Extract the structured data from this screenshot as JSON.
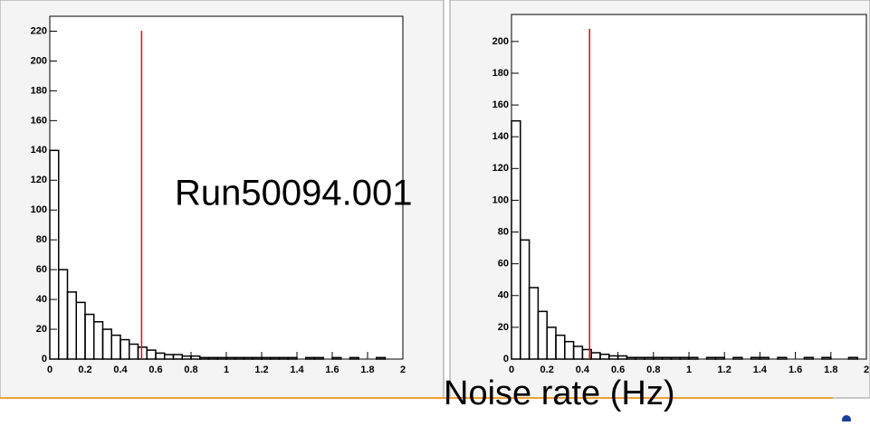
{
  "chart_data": [
    {
      "type": "histogram",
      "color": "#000000",
      "bins": [
        0,
        0.05,
        0.1,
        0.15,
        0.2,
        0.25,
        0.3,
        0.35,
        0.4,
        0.45,
        0.5,
        0.55,
        0.6,
        0.65,
        0.7,
        0.75,
        0.8,
        0.85,
        0.9,
        0.95,
        1,
        1.05,
        1.1,
        1.15,
        1.2,
        1.25,
        1.3,
        1.35,
        1.4,
        1.45,
        1.5,
        1.55,
        1.6,
        1.65,
        1.7,
        1.75,
        1.8,
        1.85,
        1.9,
        1.95,
        2
      ],
      "values": [
        140,
        60,
        45,
        38,
        30,
        25,
        20,
        16,
        13,
        10,
        8,
        6,
        4,
        3,
        3,
        2,
        2,
        1,
        1,
        1,
        1,
        1,
        1,
        1,
        1,
        1,
        1,
        1,
        0,
        1,
        1,
        0,
        1,
        0,
        1,
        0,
        0,
        1,
        0,
        0
      ],
      "vline": {
        "value": 0.52,
        "color": "#ff0000"
      },
      "xlim": [
        0,
        2
      ],
      "ylim": [
        0,
        230
      ],
      "xticks": [
        0,
        0.2,
        0.4,
        0.6,
        0.8,
        1,
        1.2,
        1.4,
        1.6,
        1.8,
        2
      ],
      "yticks": [
        0,
        20,
        40,
        60,
        80,
        100,
        120,
        140,
        160,
        180,
        200,
        220
      ]
    },
    {
      "type": "histogram",
      "color": "#000000",
      "bins": [
        0,
        0.05,
        0.1,
        0.15,
        0.2,
        0.25,
        0.3,
        0.35,
        0.4,
        0.45,
        0.5,
        0.55,
        0.6,
        0.65,
        0.7,
        0.75,
        0.8,
        0.85,
        0.9,
        0.95,
        1,
        1.05,
        1.1,
        1.15,
        1.2,
        1.25,
        1.3,
        1.35,
        1.4,
        1.45,
        1.5,
        1.55,
        1.6,
        1.65,
        1.7,
        1.75,
        1.8,
        1.85,
        1.9,
        1.95,
        2
      ],
      "values": [
        150,
        75,
        45,
        30,
        20,
        15,
        11,
        8,
        6,
        4,
        3,
        2,
        2,
        1,
        1,
        1,
        1,
        1,
        1,
        1,
        1,
        0,
        1,
        1,
        0,
        1,
        0,
        1,
        1,
        0,
        1,
        0,
        0,
        1,
        0,
        1,
        0,
        0,
        1,
        0
      ],
      "vline": {
        "value": 0.44,
        "color": "#ff0000"
      },
      "xlim": [
        0,
        2
      ],
      "ylim": [
        0,
        217
      ],
      "xticks": [
        0,
        0.2,
        0.4,
        0.6,
        0.8,
        1,
        1.2,
        1.4,
        1.6,
        1.8,
        2
      ],
      "yticks": [
        0,
        20,
        40,
        60,
        80,
        100,
        120,
        140,
        160,
        180,
        200
      ]
    }
  ],
  "annotations": {
    "run_label": "Run50094.001",
    "x_label": "Noise rate (Hz)"
  }
}
